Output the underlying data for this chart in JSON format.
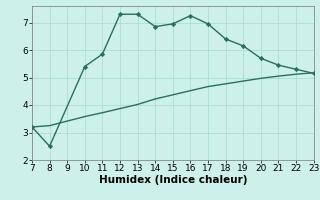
{
  "xlabel": "Humidex (Indice chaleur)",
  "line1_x": [
    7,
    8,
    10,
    11,
    12,
    13,
    14,
    15,
    16,
    17,
    18,
    19,
    20,
    21,
    22,
    23
  ],
  "line1_y": [
    3.2,
    2.5,
    5.4,
    5.85,
    7.3,
    7.3,
    6.85,
    6.95,
    7.25,
    6.95,
    6.4,
    6.15,
    5.7,
    5.45,
    5.3,
    5.15
  ],
  "line2_x": [
    7,
    8,
    10,
    11,
    12,
    13,
    14,
    15,
    16,
    17,
    18,
    19,
    20,
    21,
    22,
    23
  ],
  "line2_y": [
    3.2,
    3.25,
    3.58,
    3.72,
    3.87,
    4.02,
    4.22,
    4.37,
    4.52,
    4.67,
    4.77,
    4.87,
    4.97,
    5.05,
    5.12,
    5.17
  ],
  "line_color": "#2a6e62",
  "bg_color": "#cef0ea",
  "grid_color": "#aaddd6",
  "xlim": [
    7,
    23
  ],
  "ylim": [
    2,
    7.6
  ],
  "xticks": [
    7,
    8,
    9,
    10,
    11,
    12,
    13,
    14,
    15,
    16,
    17,
    18,
    19,
    20,
    21,
    22,
    23
  ],
  "yticks": [
    2,
    3,
    4,
    5,
    6,
    7
  ],
  "tick_fontsize": 6.5,
  "xlabel_fontsize": 7.5,
  "marker": "D",
  "marker_size": 2.2,
  "linewidth": 1.0
}
